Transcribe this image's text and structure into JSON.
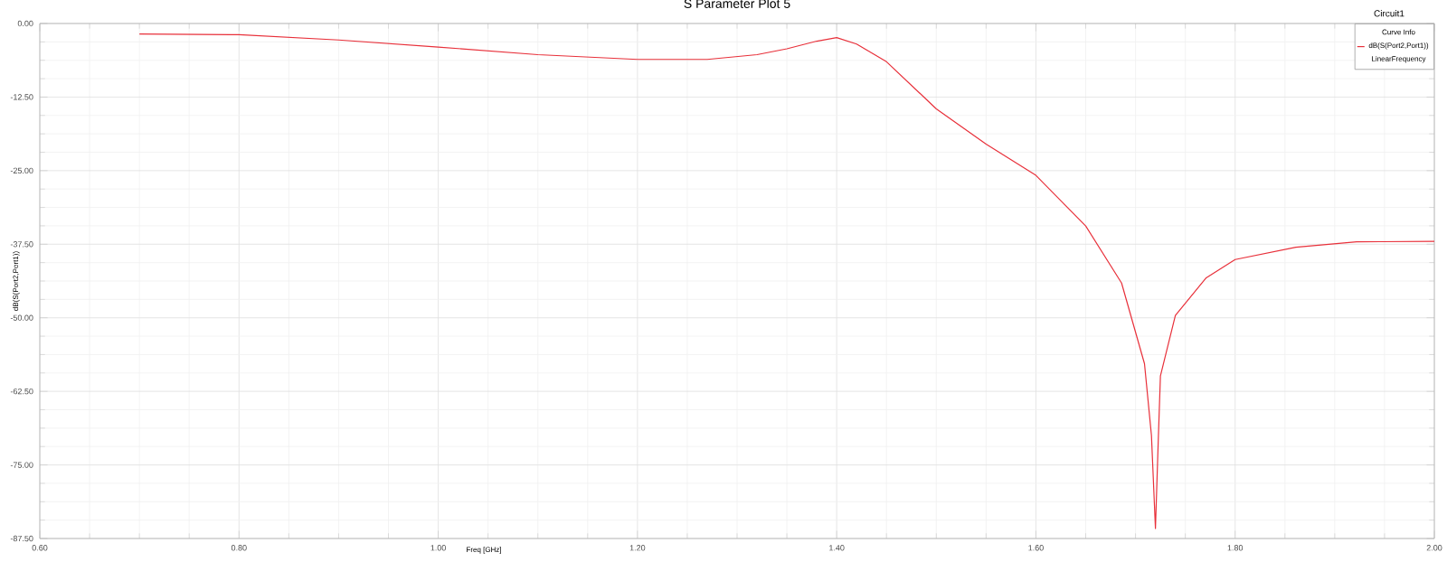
{
  "chart_data": {
    "type": "line",
    "title": "S Parameter Plot 5",
    "xlabel": "Freq [GHz]",
    "ylabel": "dB(S(Port2,Port1))",
    "legend_title": "Curve Info",
    "legend": "top right",
    "grid": true,
    "annotations": [
      "LinearFrequency",
      "Circuit1"
    ],
    "xlim": [
      0.6,
      2.0
    ],
    "ylim": [
      -87.5,
      0
    ],
    "xticks": [
      {
        "value": 0.6,
        "label": "0.60"
      },
      {
        "value": 0.8,
        "label": "0.80"
      },
      {
        "value": 1.0,
        "label": "1.00"
      },
      {
        "value": 1.2,
        "label": "1.20"
      },
      {
        "value": 1.4,
        "label": "1.40"
      },
      {
        "value": 1.6,
        "label": "1.60"
      },
      {
        "value": 1.8,
        "label": "1.80"
      },
      {
        "value": 2.0,
        "label": "2.00"
      }
    ],
    "yticks": [
      {
        "value": 0,
        "label": "0.00"
      },
      {
        "value": -12.5,
        "label": "-12.50"
      },
      {
        "value": -25,
        "label": "-25.00"
      },
      {
        "value": -37.5,
        "label": "-37.50"
      },
      {
        "value": -50,
        "label": "-50.00"
      },
      {
        "value": -62.5,
        "label": "-62.50"
      },
      {
        "value": -75,
        "label": "-75.00"
      },
      {
        "value": -87.5,
        "label": "-87.50"
      }
    ],
    "series": [
      {
        "name": "dB(S(Port2,Port1))",
        "color": "#e8303a",
        "x": [
          0.7,
          0.8,
          0.9,
          1.0,
          1.1,
          1.2,
          1.27,
          1.32,
          1.35,
          1.38,
          1.4,
          1.42,
          1.45,
          1.5,
          1.55,
          1.6,
          1.65,
          1.686,
          1.709,
          1.716,
          1.72,
          1.723,
          1.725,
          1.74,
          1.771,
          1.8,
          1.861,
          1.922,
          2.0
        ],
        "values": [
          -1.8,
          -1.9,
          -2.8,
          -4.0,
          -5.3,
          -6.1,
          -6.1,
          -5.3,
          -4.3,
          -3.0,
          -2.4,
          -3.5,
          -6.5,
          -14.5,
          -20.5,
          -25.8,
          -34.4,
          -44.1,
          -57.8,
          -70,
          -85.8,
          -70,
          -59.9,
          -49.6,
          -43.2,
          -40.1,
          -38.0,
          -37.1,
          -37.0
        ]
      }
    ]
  }
}
